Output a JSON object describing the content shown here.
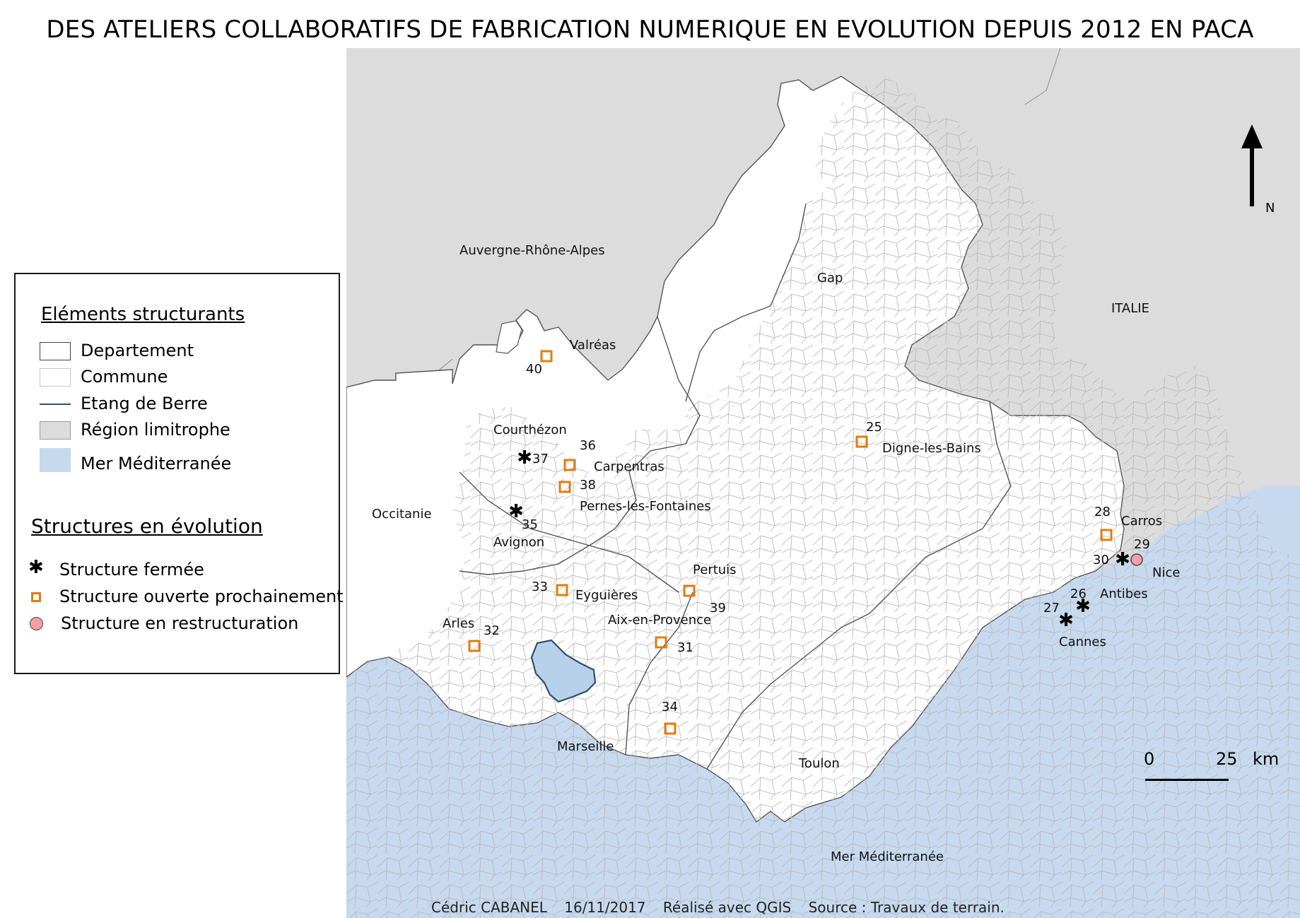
{
  "title": "DES ATELIERS COLLABORATIFS DE FABRICATION NUMERIQUE EN EVOLUTION DEPUIS 2012 EN PACA",
  "colors": {
    "region": "#ffffff",
    "neighbor": "#dcdcdc",
    "sea": "#c6d9ef",
    "etang": "#b8d1ea",
    "etang_stroke": "#2f4f6b",
    "commune_line": "#b8b8b8",
    "open": "#e07d10",
    "restructuring": "#f4a0a4",
    "closed": "#000000"
  },
  "region_labels": {
    "aura": "Auvergne-Rhône-Alpes",
    "occitanie": "Occitanie",
    "italie": "ITALIE",
    "mer": "Mer Méditerranée"
  },
  "cities": {
    "gap": "Gap",
    "valreas": "Valréas",
    "courthezon": "Courthézon",
    "carpentras": "Carpentras",
    "pernes": "Pernes-les-Fontaines",
    "avignon": "Avignon",
    "digne": "Digne-les-Bains",
    "carros": "Carros",
    "nice": "Nice",
    "antibes": "Antibes",
    "cannes": "Cannes",
    "pertuis": "Pertuis",
    "eyguieres": "Eyguières",
    "aix": "Aix-en-Provence",
    "arles": "Arles",
    "marseille": "Marseille",
    "toulon": "Toulon"
  },
  "structures": [
    {
      "id": "25",
      "status": "open"
    },
    {
      "id": "26",
      "status": "closed"
    },
    {
      "id": "27",
      "status": "closed"
    },
    {
      "id": "28",
      "status": "open"
    },
    {
      "id": "29",
      "status": "restructuring"
    },
    {
      "id": "30",
      "status": "closed"
    },
    {
      "id": "31",
      "status": "open"
    },
    {
      "id": "32",
      "status": "open"
    },
    {
      "id": "33",
      "status": "open"
    },
    {
      "id": "34",
      "status": "open"
    },
    {
      "id": "35",
      "status": "closed"
    },
    {
      "id": "36",
      "status": "open"
    },
    {
      "id": "37",
      "status": "closed"
    },
    {
      "id": "38",
      "status": "open"
    },
    {
      "id": "39",
      "status": "open"
    },
    {
      "id": "40",
      "status": "open"
    }
  ],
  "legend": {
    "heading_1": "Eléments structurants",
    "departement": "Departement",
    "commune": "Commune",
    "etang": "Etang de Berre",
    "region_limitrophe": "Région limitrophe",
    "mer": "Mer Méditerranée",
    "heading_2": "Structures en évolution",
    "fermee": "Structure fermée",
    "ouverte": "Structure ouverte prochainement",
    "restructuration": "Structure en restructuration"
  },
  "north_label": "N",
  "scale": {
    "start": "0",
    "end": "25",
    "unit": "km"
  },
  "footer": {
    "author": "Cédric CABANEL",
    "date": "16/11/2017",
    "tool": "Réalisé avec QGIS",
    "source": "Source : Travaux de terrain."
  }
}
